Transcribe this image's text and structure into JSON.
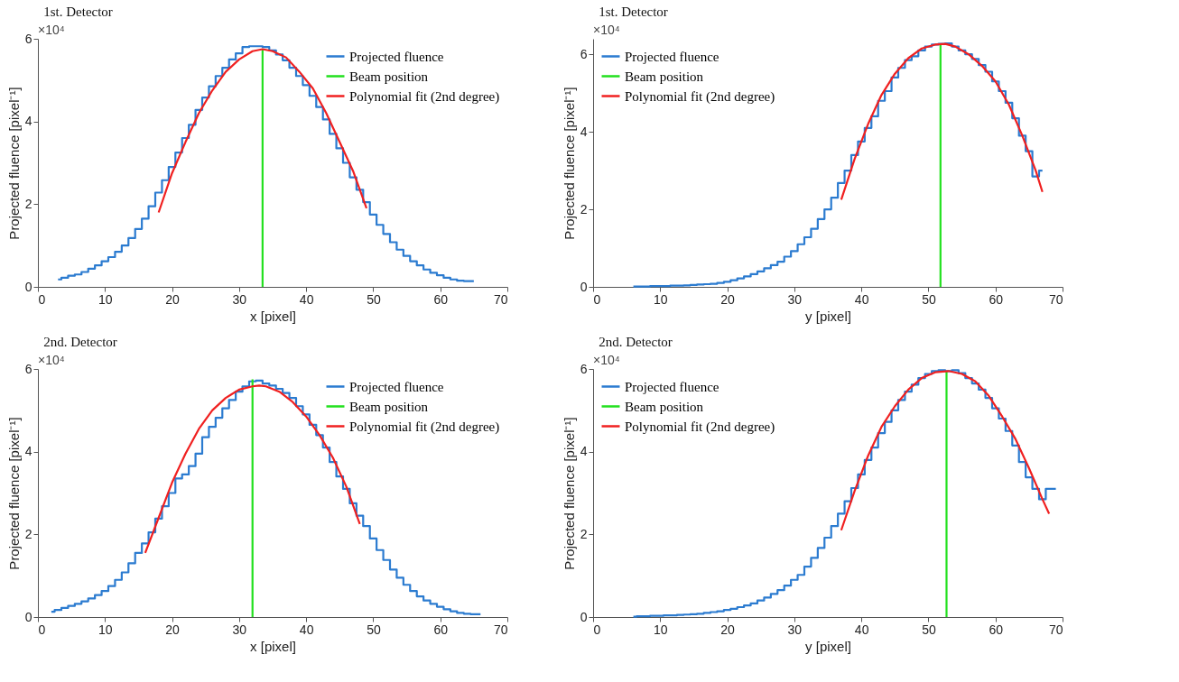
{
  "chart_data": [
    {
      "type": "step",
      "title": "1st. Detector",
      "xlabel": "x [pixel]",
      "ylabel": "Projected fluence [pixel⁻¹]",
      "annotations": [
        "×10⁴"
      ],
      "legend": "top right",
      "xlim": [
        0,
        70
      ],
      "xticks": [
        0,
        10,
        20,
        30,
        40,
        50,
        60,
        70
      ],
      "ylim": [
        0,
        6
      ],
      "yticks": [
        0,
        2,
        4,
        6
      ],
      "x": [
        3,
        4,
        5,
        6,
        7,
        8,
        9,
        10,
        11,
        12,
        13,
        14,
        15,
        16,
        17,
        18,
        19,
        20,
        21,
        22,
        23,
        24,
        25,
        26,
        27,
        28,
        29,
        30,
        31,
        32,
        33,
        34,
        35,
        36,
        37,
        38,
        39,
        40,
        41,
        42,
        43,
        44,
        45,
        46,
        47,
        48,
        49,
        50,
        51,
        52,
        53,
        54,
        55,
        56,
        57,
        58,
        59,
        60,
        61,
        62,
        63,
        64,
        65
      ],
      "series": [
        {
          "name": "Projected fluence",
          "color": "#2b7bd0",
          "values": [
            0.18,
            0.22,
            0.27,
            0.3,
            0.36,
            0.44,
            0.52,
            0.62,
            0.72,
            0.85,
            1.0,
            1.18,
            1.4,
            1.65,
            1.95,
            2.28,
            2.58,
            2.9,
            3.25,
            3.6,
            3.92,
            4.28,
            4.58,
            4.85,
            5.1,
            5.3,
            5.5,
            5.65,
            5.8,
            5.82,
            5.82,
            5.8,
            5.72,
            5.62,
            5.48,
            5.3,
            5.1,
            4.88,
            4.62,
            4.35,
            4.05,
            3.7,
            3.35,
            3.0,
            2.65,
            2.35,
            2.05,
            1.75,
            1.5,
            1.28,
            1.08,
            0.9,
            0.75,
            0.62,
            0.52,
            0.42,
            0.34,
            0.28,
            0.22,
            0.18,
            0.15,
            0.14,
            0.14
          ]
        },
        {
          "name": "Beam position",
          "type": "line",
          "color": "#22e01e",
          "x": [
            33.5,
            33.5
          ],
          "values": [
            0,
            5.75
          ]
        },
        {
          "name": "Polynomial fit (2nd degree)",
          "type": "line",
          "color": "#f02020",
          "x": [
            18,
            20,
            22,
            24,
            26,
            28,
            30,
            32,
            33.5,
            35,
            37,
            39,
            41,
            43,
            45,
            47,
            49
          ],
          "values": [
            1.8,
            2.75,
            3.5,
            4.2,
            4.75,
            5.2,
            5.5,
            5.7,
            5.75,
            5.7,
            5.55,
            5.2,
            4.8,
            4.2,
            3.5,
            2.8,
            1.9
          ]
        }
      ]
    },
    {
      "type": "step",
      "title": "1st. Detector",
      "xlabel": "y [pixel]",
      "ylabel": "Projected fluence [pixel⁻¹]",
      "annotations": [
        "×10⁴"
      ],
      "legend": "top left",
      "xlim": [
        0,
        70
      ],
      "xticks": [
        0,
        10,
        20,
        30,
        40,
        50,
        60,
        70
      ],
      "ylim": [
        0,
        6.4
      ],
      "yticks": [
        0,
        2,
        4,
        6
      ],
      "x": [
        6,
        7,
        8,
        9,
        10,
        11,
        12,
        13,
        14,
        15,
        16,
        17,
        18,
        19,
        20,
        21,
        22,
        23,
        24,
        25,
        26,
        27,
        28,
        29,
        30,
        31,
        32,
        33,
        34,
        35,
        36,
        37,
        38,
        39,
        40,
        41,
        42,
        43,
        44,
        45,
        46,
        47,
        48,
        49,
        50,
        51,
        52,
        53,
        54,
        55,
        56,
        57,
        58,
        59,
        60,
        61,
        62,
        63,
        64,
        65,
        66,
        67
      ],
      "series": [
        {
          "name": "Projected fluence",
          "color": "#2b7bd0",
          "values": [
            0.01,
            0.01,
            0.01,
            0.02,
            0.02,
            0.02,
            0.03,
            0.03,
            0.04,
            0.05,
            0.06,
            0.07,
            0.08,
            0.1,
            0.13,
            0.17,
            0.22,
            0.27,
            0.33,
            0.4,
            0.48,
            0.56,
            0.65,
            0.78,
            0.92,
            1.1,
            1.28,
            1.5,
            1.75,
            2.0,
            2.3,
            2.68,
            3.0,
            3.4,
            3.75,
            4.1,
            4.4,
            4.8,
            5.05,
            5.4,
            5.65,
            5.85,
            5.95,
            6.1,
            6.2,
            6.25,
            6.27,
            6.28,
            6.2,
            6.1,
            6.0,
            5.88,
            5.72,
            5.55,
            5.3,
            5.05,
            4.75,
            4.35,
            3.9,
            3.5,
            2.85,
            3.0
          ]
        },
        {
          "name": "Beam position",
          "type": "line",
          "color": "#22e01e",
          "x": [
            51.8,
            51.8
          ],
          "values": [
            0,
            6.27
          ]
        },
        {
          "name": "Polynomial fit (2nd degree)",
          "type": "line",
          "color": "#f02020",
          "x": [
            37,
            39,
            41,
            43,
            45,
            47,
            49,
            51,
            52.5,
            54,
            56,
            58,
            60,
            62,
            64,
            66,
            67
          ],
          "values": [
            2.25,
            3.3,
            4.2,
            4.95,
            5.5,
            5.9,
            6.15,
            6.25,
            6.27,
            6.2,
            6.0,
            5.7,
            5.3,
            4.7,
            3.9,
            3.0,
            2.45
          ]
        }
      ]
    },
    {
      "type": "step",
      "title": "2nd. Detector",
      "xlabel": "x [pixel]",
      "ylabel": "Projected fluence [pixel⁻¹]",
      "annotations": [
        "×10⁴"
      ],
      "legend": "top right",
      "xlim": [
        0,
        70
      ],
      "xticks": [
        0,
        10,
        20,
        30,
        40,
        50,
        60,
        70
      ],
      "ylim": [
        0,
        6
      ],
      "yticks": [
        0,
        2,
        4,
        6
      ],
      "x": [
        2,
        3,
        4,
        5,
        6,
        7,
        8,
        9,
        10,
        11,
        12,
        13,
        14,
        15,
        16,
        17,
        18,
        19,
        20,
        21,
        22,
        23,
        24,
        25,
        26,
        27,
        28,
        29,
        30,
        31,
        32,
        33,
        34,
        35,
        36,
        37,
        38,
        39,
        40,
        41,
        42,
        43,
        44,
        45,
        46,
        47,
        48,
        49,
        50,
        51,
        52,
        53,
        54,
        55,
        56,
        57,
        58,
        59,
        60,
        61,
        62,
        63,
        64,
        65,
        66
      ],
      "series": [
        {
          "name": "Projected fluence",
          "color": "#2b7bd0",
          "values": [
            0.13,
            0.17,
            0.22,
            0.27,
            0.32,
            0.38,
            0.45,
            0.53,
            0.63,
            0.75,
            0.9,
            1.08,
            1.3,
            1.55,
            1.78,
            2.05,
            2.38,
            2.68,
            3.0,
            3.35,
            3.45,
            3.65,
            3.95,
            4.35,
            4.6,
            4.82,
            5.05,
            5.25,
            5.45,
            5.58,
            5.7,
            5.72,
            5.65,
            5.6,
            5.52,
            5.42,
            5.3,
            5.1,
            4.9,
            4.65,
            4.4,
            4.1,
            3.75,
            3.4,
            3.1,
            2.75,
            2.45,
            2.2,
            1.9,
            1.62,
            1.38,
            1.15,
            0.95,
            0.78,
            0.63,
            0.5,
            0.4,
            0.32,
            0.25,
            0.19,
            0.14,
            0.1,
            0.08,
            0.07,
            0.07
          ]
        },
        {
          "name": "Beam position",
          "type": "line",
          "color": "#22e01e",
          "x": [
            32,
            32
          ],
          "values": [
            0,
            5.75
          ]
        },
        {
          "name": "Polynomial fit (2nd degree)",
          "type": "line",
          "color": "#f02020",
          "x": [
            16,
            18,
            20,
            22,
            24,
            26,
            28,
            30,
            32,
            33,
            34,
            36,
            38,
            40,
            42,
            44,
            46,
            48
          ],
          "values": [
            1.55,
            2.4,
            3.25,
            3.95,
            4.55,
            5.0,
            5.3,
            5.5,
            5.58,
            5.6,
            5.58,
            5.45,
            5.2,
            4.85,
            4.4,
            3.85,
            3.15,
            2.25
          ]
        }
      ]
    },
    {
      "type": "step",
      "title": "2nd. Detector",
      "xlabel": "y [pixel]",
      "ylabel": "Projected fluence [pixel⁻¹]",
      "annotations": [
        "×10⁴"
      ],
      "legend": "top left",
      "xlim": [
        0,
        70
      ],
      "xticks": [
        0,
        10,
        20,
        30,
        40,
        50,
        60,
        70
      ],
      "ylim": [
        0,
        6
      ],
      "yticks": [
        0,
        2,
        4,
        6
      ],
      "x": [
        6,
        7,
        8,
        9,
        10,
        11,
        12,
        13,
        14,
        15,
        16,
        17,
        18,
        19,
        20,
        21,
        22,
        23,
        24,
        25,
        26,
        27,
        28,
        29,
        30,
        31,
        32,
        33,
        34,
        35,
        36,
        37,
        38,
        39,
        40,
        41,
        42,
        43,
        44,
        45,
        46,
        47,
        48,
        49,
        50,
        51,
        52,
        53,
        54,
        55,
        56,
        57,
        58,
        59,
        60,
        61,
        62,
        63,
        64,
        65,
        66,
        67,
        68,
        69
      ],
      "series": [
        {
          "name": "Projected fluence",
          "color": "#2b7bd0",
          "values": [
            0.01,
            0.02,
            0.02,
            0.03,
            0.03,
            0.04,
            0.04,
            0.05,
            0.06,
            0.07,
            0.08,
            0.1,
            0.12,
            0.14,
            0.17,
            0.2,
            0.24,
            0.28,
            0.33,
            0.4,
            0.47,
            0.56,
            0.65,
            0.76,
            0.9,
            1.02,
            1.22,
            1.43,
            1.67,
            1.92,
            2.2,
            2.5,
            2.8,
            3.12,
            3.45,
            3.8,
            4.1,
            4.45,
            4.72,
            5.0,
            5.25,
            5.45,
            5.62,
            5.78,
            5.88,
            5.95,
            5.97,
            5.95,
            5.97,
            5.9,
            5.78,
            5.65,
            5.5,
            5.3,
            5.05,
            4.8,
            4.5,
            4.15,
            3.75,
            3.38,
            3.1,
            2.85,
            3.1,
            3.1
          ]
        },
        {
          "name": "Beam position",
          "type": "line",
          "color": "#22e01e",
          "x": [
            52.7,
            52.7
          ],
          "values": [
            0,
            5.95
          ]
        },
        {
          "name": "Polynomial fit (2nd degree)",
          "type": "line",
          "color": "#f02020",
          "x": [
            37,
            39,
            41,
            43,
            45,
            47,
            49,
            51,
            53,
            55,
            57,
            59,
            61,
            63,
            65,
            67,
            68
          ],
          "values": [
            2.1,
            3.05,
            3.9,
            4.6,
            5.1,
            5.5,
            5.78,
            5.92,
            5.95,
            5.88,
            5.7,
            5.35,
            4.85,
            4.3,
            3.6,
            2.85,
            2.5
          ]
        }
      ]
    }
  ]
}
